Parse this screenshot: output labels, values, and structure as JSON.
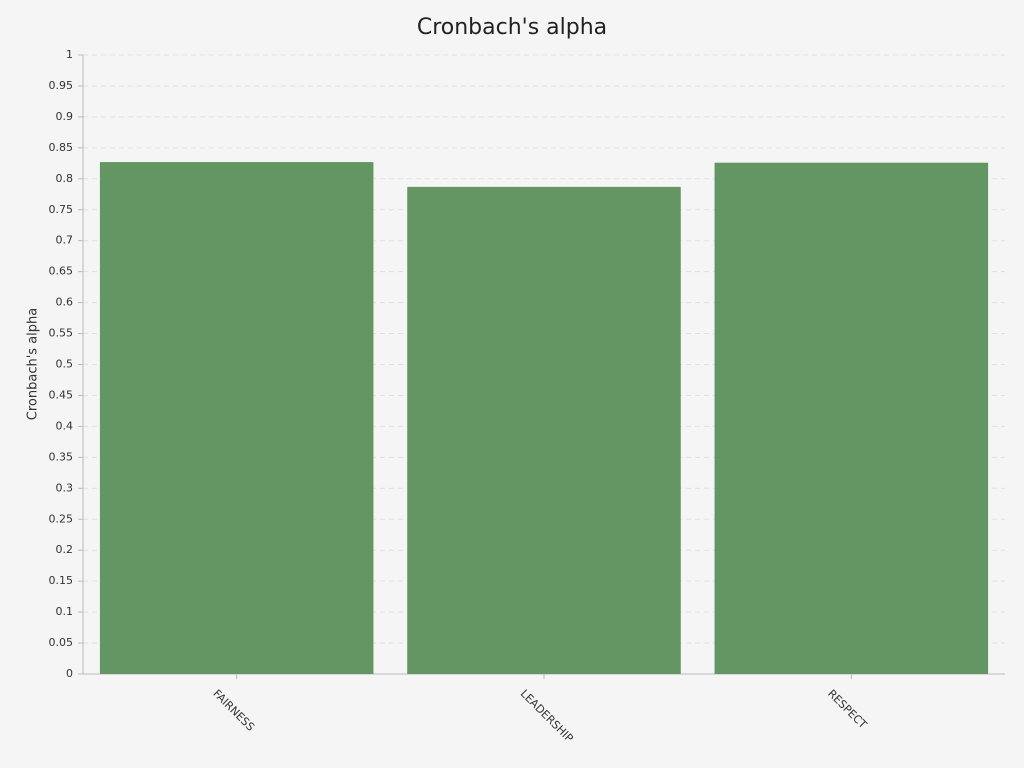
{
  "chart_data": {
    "type": "bar",
    "title": "Cronbach's alpha",
    "y_label": "Cronbach's alpha",
    "categories": [
      "FAIRNESS",
      "LEADERSHIP",
      "RESPECT"
    ],
    "values": [
      0.827,
      0.787,
      0.826
    ],
    "color": "#649664",
    "ylim": [
      0,
      1
    ],
    "yticks": [
      0,
      0.05,
      0.1,
      0.15,
      0.2,
      0.25,
      0.3,
      0.35,
      0.4,
      0.45,
      0.5,
      0.55,
      0.6,
      0.65,
      0.7,
      0.75,
      0.8,
      0.85,
      0.9,
      0.95,
      1
    ],
    "grid": true
  }
}
